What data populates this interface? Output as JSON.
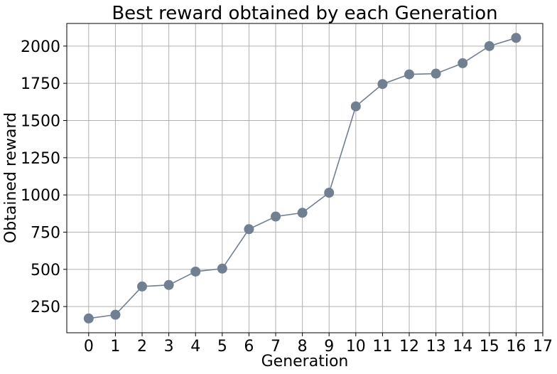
{
  "chart_data": {
    "type": "line",
    "title": "Best reward obtained by each Generation",
    "xlabel": "Generation",
    "ylabel": "Obtained reward",
    "x": [
      0,
      1,
      2,
      3,
      4,
      5,
      6,
      7,
      8,
      9,
      10,
      11,
      12,
      13,
      14,
      15,
      16
    ],
    "series": [
      {
        "values": [
          170,
          195,
          385,
          395,
          485,
          505,
          770,
          855,
          880,
          1015,
          1595,
          1745,
          1810,
          1815,
          1885,
          2000,
          2055
        ],
        "color": "#708090",
        "marker": "circle"
      }
    ],
    "xticks": [
      0,
      1,
      2,
      3,
      4,
      5,
      6,
      7,
      8,
      9,
      10,
      11,
      12,
      13,
      14,
      15,
      16,
      17
    ],
    "yticks": [
      250,
      500,
      750,
      1000,
      1250,
      1500,
      1750,
      2000
    ],
    "xlim": [
      -0.82,
      17.0
    ],
    "ylim": [
      74,
      2152
    ],
    "grid": true,
    "legend": "none"
  }
}
